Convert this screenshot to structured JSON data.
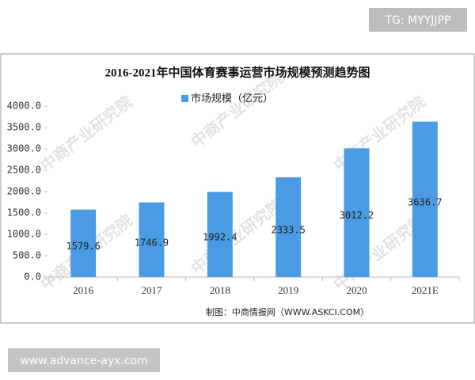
{
  "overlay": {
    "tag": "TG: MYYJJPP",
    "url": "www.advance-ayx.com"
  },
  "chart_data": {
    "type": "bar",
    "title": "2016-2021年中国体育赛事运营市场规模预测趋势图",
    "categories": [
      "2016",
      "2017",
      "2018",
      "2019",
      "2020",
      "2021E"
    ],
    "series": [
      {
        "name": "市场规模（亿元）",
        "color": "#4a9be3",
        "values": [
          1579.6,
          1746.9,
          1992.4,
          2333.5,
          3012.2,
          3636.7
        ]
      }
    ],
    "ylim": [
      0,
      4000
    ],
    "yticks": [
      {
        "value": 0,
        "label": "0.0"
      },
      {
        "value": 500,
        "label": "500.0"
      },
      {
        "value": 1000,
        "label": "1000.0"
      },
      {
        "value": 1500,
        "label": "1500.0"
      },
      {
        "value": 2000,
        "label": "2000.0"
      },
      {
        "value": 2500,
        "label": "2500.0"
      },
      {
        "value": 3000,
        "label": "3000.0"
      },
      {
        "value": 3500,
        "label": "3500.0"
      },
      {
        "value": 4000,
        "label": "4000.0"
      }
    ],
    "grid": false,
    "legend": "top",
    "source": "制图：中商情报网（WWW.ASKCI.COM）",
    "watermark": "中商产业研究院"
  }
}
